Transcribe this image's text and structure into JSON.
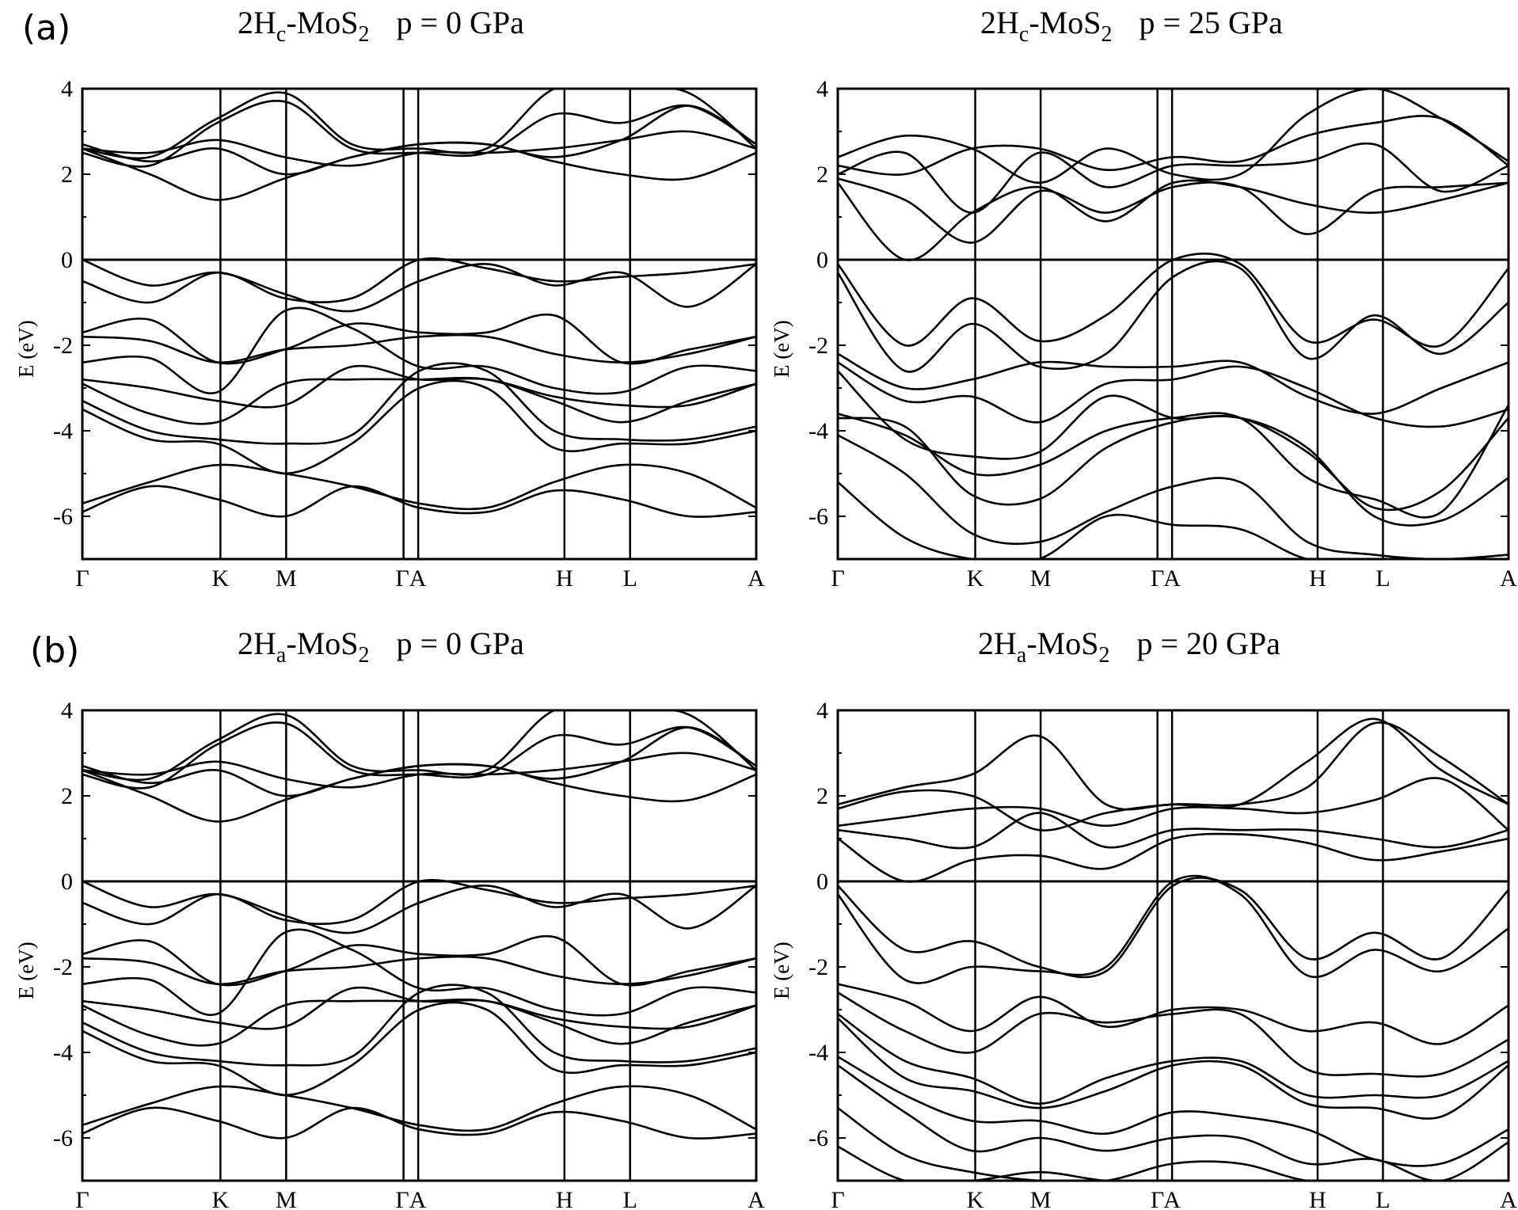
{
  "figure": {
    "panel_tags": [
      "(a)",
      "(b)"
    ]
  },
  "chart_data": [
    {
      "type": "line",
      "panel": "(a)",
      "title": {
        "main": "2H",
        "sub": "c",
        "rest": "-MoS",
        "sub2": "2",
        "pressure": "p = 0 GPa"
      },
      "ylabel": "E (eV)",
      "ylim": [
        -7,
        4
      ],
      "yticks": [
        4,
        2,
        0,
        -2,
        -4,
        -6
      ],
      "ytick_labels": [
        "4",
        "2",
        "0",
        "-2",
        "-4",
        "-6"
      ],
      "kpath": [
        "Γ",
        "K",
        "M",
        "Γ",
        "A",
        "H",
        "L",
        "A"
      ],
      "kpos": [
        0,
        0.2049,
        0.3024,
        0.4766,
        0.4984,
        0.7154,
        0.8128,
        1.0
      ],
      "kpath_labels": [
        "Γ",
        "K",
        "M",
        "ΓA",
        "H",
        "L",
        "A"
      ],
      "kpath_label_pos": [
        0,
        0.2049,
        0.3024,
        0.4875,
        0.7154,
        0.8128,
        1.0
      ],
      "bands": [
        [
          2.6,
          2.0,
          1.4,
          1.9,
          2.4,
          2.7,
          2.7,
          2.3,
          2.0,
          1.9,
          2.5
        ],
        [
          2.6,
          2.5,
          2.8,
          2.4,
          2.2,
          2.5,
          2.5,
          2.6,
          2.8,
          3.0,
          2.6
        ],
        [
          2.7,
          2.3,
          2.6,
          2.0,
          2.4,
          2.7,
          2.7,
          2.4,
          2.8,
          3.6,
          2.7
        ],
        [
          2.5,
          2.2,
          3.2,
          3.7,
          2.6,
          2.5,
          2.5,
          3.4,
          3.2,
          3.6,
          2.7
        ],
        [
          2.6,
          2.4,
          3.3,
          3.9,
          2.7,
          2.6,
          2.6,
          4.0,
          4.0,
          3.9,
          2.6
        ],
        [
          0.0,
          -0.6,
          -0.3,
          -0.8,
          -1.2,
          -0.5,
          -0.1,
          -0.6,
          -0.3,
          -1.1,
          -0.1
        ],
        [
          -0.5,
          -1.0,
          -0.3,
          -0.9,
          -0.9,
          0.0,
          -0.2,
          -0.5,
          -0.4,
          -0.3,
          -0.1
        ],
        [
          -1.7,
          -1.4,
          -2.4,
          -2.1,
          -1.5,
          -1.7,
          -1.7,
          -1.3,
          -2.4,
          -2.1,
          -1.8
        ],
        [
          -1.8,
          -1.9,
          -2.4,
          -2.1,
          -2.0,
          -1.8,
          -1.8,
          -2.2,
          -2.4,
          -2.2,
          -1.8
        ],
        [
          -2.4,
          -2.3,
          -3.1,
          -1.2,
          -1.6,
          -2.5,
          -2.5,
          -3.0,
          -3.1,
          -2.5,
          -2.6
        ],
        [
          -2.8,
          -3.0,
          -3.3,
          -3.4,
          -2.5,
          -2.8,
          -2.8,
          -3.2,
          -3.4,
          -3.4,
          -2.9
        ],
        [
          -2.9,
          -3.6,
          -3.8,
          -2.9,
          -2.8,
          -2.8,
          -2.8,
          -3.3,
          -3.8,
          -3.3,
          -2.9
        ],
        [
          -3.3,
          -4.0,
          -4.2,
          -4.3,
          -4.1,
          -2.6,
          -2.6,
          -4.0,
          -4.2,
          -4.2,
          -3.9
        ],
        [
          -3.5,
          -4.2,
          -4.3,
          -5.0,
          -4.3,
          -3.0,
          -3.0,
          -4.4,
          -4.3,
          -4.3,
          -4.0
        ],
        [
          -5.7,
          -5.2,
          -4.8,
          -5.0,
          -5.3,
          -5.7,
          -5.8,
          -5.2,
          -4.8,
          -5.0,
          -5.8
        ],
        [
          -5.9,
          -5.3,
          -5.6,
          -6.0,
          -5.3,
          -5.8,
          -5.9,
          -5.4,
          -5.6,
          -6.0,
          -5.9
        ]
      ]
    },
    {
      "type": "line",
      "panel": "(a)",
      "title": {
        "main": "2H",
        "sub": "c",
        "rest": "-MoS",
        "sub2": "2",
        "pressure": "p = 25 GPa"
      },
      "ylabel": "E (eV)",
      "ylim": [
        -7,
        4
      ],
      "yticks": [
        4,
        2,
        0,
        -2,
        -4,
        -6
      ],
      "ytick_labels": [
        "4",
        "2",
        "0",
        "-2",
        "-4",
        "-6"
      ],
      "kpath": [
        "Γ",
        "K",
        "M",
        "Γ",
        "A",
        "H",
        "L",
        "A"
      ],
      "kpos": [
        0,
        0.2049,
        0.3024,
        0.4766,
        0.4984,
        0.7154,
        0.8128,
        1.0
      ],
      "kpath_labels": [
        "Γ",
        "K",
        "M",
        "Γ",
        "A",
        "H",
        "L",
        "A"
      ],
      "kpath_label_pos": [
        0,
        0.2049,
        0.3024,
        0.4766,
        0.4984,
        0.7154,
        0.8128,
        1.0
      ],
      "bands": [
        [
          1.8,
          0.0,
          1.1,
          1.7,
          0.9,
          1.8,
          1.7,
          1.3,
          1.1,
          1.4,
          1.8
        ],
        [
          1.9,
          1.4,
          0.4,
          1.6,
          1.1,
          1.7,
          1.7,
          0.6,
          1.6,
          1.7,
          1.8
        ],
        [
          2.0,
          2.5,
          1.1,
          2.5,
          1.7,
          2.2,
          2.2,
          2.3,
          2.7,
          1.6,
          2.2
        ],
        [
          2.2,
          2.0,
          2.6,
          2.6,
          2.1,
          2.4,
          2.3,
          2.9,
          3.2,
          3.3,
          2.2
        ],
        [
          2.4,
          2.9,
          2.6,
          1.8,
          2.6,
          2.0,
          2.0,
          3.4,
          4.0,
          3.3,
          2.3
        ],
        [
          -0.1,
          -2.0,
          -0.9,
          -1.9,
          -1.3,
          0.0,
          -0.1,
          -1.9,
          -1.4,
          -2.0,
          -0.2
        ],
        [
          -0.3,
          -2.6,
          -1.5,
          -2.5,
          -2.2,
          -0.4,
          -0.2,
          -2.3,
          -1.3,
          -2.2,
          -1.0
        ],
        [
          -2.2,
          -3.0,
          -2.8,
          -2.4,
          -2.5,
          -2.5,
          -2.4,
          -3.2,
          -3.6,
          -3.0,
          -2.4
        ],
        [
          -2.4,
          -3.3,
          -3.2,
          -3.8,
          -2.9,
          -2.8,
          -2.5,
          -3.0,
          -3.7,
          -3.9,
          -3.5
        ],
        [
          -2.6,
          -4.2,
          -4.6,
          -4.5,
          -3.2,
          -3.7,
          -3.7,
          -4.5,
          -5.8,
          -5.4,
          -3.7
        ],
        [
          -3.6,
          -4.1,
          -5.0,
          -4.8,
          -4.0,
          -3.7,
          -3.7,
          -5.1,
          -5.6,
          -5.9,
          -3.4
        ],
        [
          -3.7,
          -3.9,
          -5.5,
          -5.6,
          -4.4,
          -3.8,
          -3.7,
          -4.4,
          -6.0,
          -6.1,
          -5.1
        ],
        [
          -4.1,
          -5.0,
          -6.4,
          -6.6,
          -5.9,
          -5.3,
          -5.2,
          -6.6,
          -6.9,
          -7.0,
          -6.9
        ],
        [
          -5.2,
          -6.5,
          -7.0,
          -7.0,
          -6.0,
          -6.2,
          -6.3,
          -7.0,
          -7.0,
          -7.0,
          -7.0
        ]
      ]
    },
    {
      "type": "line",
      "panel": "(b)",
      "title": {
        "main": "2H",
        "sub": "a",
        "rest": "-MoS",
        "sub2": "2",
        "pressure": "p = 0 GPa"
      },
      "ylabel": "E (eV)",
      "ylim": [
        -7,
        4
      ],
      "yticks": [
        4,
        2,
        0,
        -2,
        -4,
        -6
      ],
      "ytick_labels": [
        "4",
        "2",
        "0",
        "-2",
        "-4",
        "-6"
      ],
      "kpath": [
        "Γ",
        "K",
        "M",
        "Γ",
        "A",
        "H",
        "L",
        "A"
      ],
      "kpos": [
        0,
        0.2049,
        0.3024,
        0.4766,
        0.4984,
        0.7154,
        0.8128,
        1.0
      ],
      "kpath_labels": [
        "Γ",
        "K",
        "M",
        "ΓA",
        "H",
        "L",
        "A"
      ],
      "kpath_label_pos": [
        0,
        0.2049,
        0.3024,
        0.4875,
        0.7154,
        0.8128,
        1.0
      ],
      "bands": [
        [
          2.6,
          2.0,
          1.4,
          1.9,
          2.4,
          2.7,
          2.7,
          2.3,
          2.0,
          1.9,
          2.5
        ],
        [
          2.6,
          2.5,
          2.8,
          2.4,
          2.2,
          2.5,
          2.5,
          2.6,
          2.8,
          3.0,
          2.6
        ],
        [
          2.7,
          2.3,
          2.6,
          2.0,
          2.4,
          2.7,
          2.7,
          2.4,
          2.8,
          3.6,
          2.7
        ],
        [
          2.5,
          2.2,
          3.2,
          3.7,
          2.6,
          2.5,
          2.5,
          3.4,
          3.2,
          3.6,
          2.7
        ],
        [
          2.6,
          2.4,
          3.3,
          3.9,
          2.7,
          2.6,
          2.6,
          4.0,
          4.0,
          3.9,
          2.6
        ],
        [
          0.0,
          -0.6,
          -0.3,
          -0.8,
          -1.2,
          -0.5,
          -0.1,
          -0.6,
          -0.3,
          -1.1,
          -0.1
        ],
        [
          -0.5,
          -1.0,
          -0.3,
          -0.9,
          -0.9,
          0.0,
          -0.2,
          -0.5,
          -0.4,
          -0.3,
          -0.1
        ],
        [
          -1.7,
          -1.4,
          -2.4,
          -2.1,
          -1.5,
          -1.7,
          -1.7,
          -1.3,
          -2.4,
          -2.1,
          -1.8
        ],
        [
          -1.8,
          -1.9,
          -2.4,
          -2.1,
          -2.0,
          -1.8,
          -1.8,
          -2.2,
          -2.4,
          -2.2,
          -1.8
        ],
        [
          -2.4,
          -2.3,
          -3.1,
          -1.2,
          -1.6,
          -2.5,
          -2.5,
          -3.0,
          -3.1,
          -2.5,
          -2.6
        ],
        [
          -2.8,
          -3.0,
          -3.3,
          -3.4,
          -2.5,
          -2.8,
          -2.8,
          -3.2,
          -3.4,
          -3.4,
          -2.9
        ],
        [
          -2.9,
          -3.6,
          -3.8,
          -2.9,
          -2.8,
          -2.8,
          -2.8,
          -3.3,
          -3.8,
          -3.3,
          -2.9
        ],
        [
          -3.3,
          -4.0,
          -4.2,
          -4.3,
          -4.1,
          -2.6,
          -2.6,
          -4.0,
          -4.2,
          -4.2,
          -3.9
        ],
        [
          -3.5,
          -4.2,
          -4.3,
          -5.0,
          -4.3,
          -3.0,
          -3.0,
          -4.4,
          -4.3,
          -4.3,
          -4.0
        ],
        [
          -5.7,
          -5.2,
          -4.8,
          -5.0,
          -5.3,
          -5.7,
          -5.8,
          -5.2,
          -4.8,
          -5.0,
          -5.8
        ],
        [
          -5.9,
          -5.3,
          -5.6,
          -6.0,
          -5.3,
          -5.8,
          -5.9,
          -5.4,
          -5.6,
          -6.0,
          -5.9
        ]
      ]
    },
    {
      "type": "line",
      "panel": "(b)",
      "title": {
        "main": "2H",
        "sub": "a",
        "rest": "-MoS",
        "sub2": "2",
        "pressure": "p = 20 GPa"
      },
      "ylabel": "E (eV)",
      "ylim": [
        -7,
        4
      ],
      "yticks": [
        4,
        2,
        0,
        -2,
        -4,
        -6
      ],
      "ytick_labels": [
        "4",
        "2",
        "0",
        "-2",
        "-4",
        "-6"
      ],
      "kpath": [
        "Γ",
        "K",
        "M",
        "Γ",
        "A",
        "H",
        "L",
        "A"
      ],
      "kpos": [
        0,
        0.2049,
        0.3024,
        0.4766,
        0.4984,
        0.7154,
        0.8128,
        1.0
      ],
      "kpath_labels": [
        "Γ",
        "K",
        "M",
        "Γ",
        "A",
        "H",
        "L",
        "A"
      ],
      "kpath_label_pos": [
        0,
        0.2049,
        0.3024,
        0.4766,
        0.4984,
        0.7154,
        0.8128,
        1.0
      ],
      "bands": [
        [
          1.0,
          0.0,
          0.5,
          0.6,
          0.3,
          1.0,
          1.1,
          0.9,
          0.5,
          0.7,
          1.0
        ],
        [
          1.2,
          1.0,
          0.8,
          1.6,
          0.8,
          1.2,
          1.2,
          1.2,
          1.0,
          0.8,
          1.2
        ],
        [
          1.3,
          1.5,
          1.7,
          1.7,
          1.3,
          1.7,
          1.7,
          1.6,
          1.9,
          2.4,
          1.2
        ],
        [
          1.7,
          2.1,
          2.0,
          1.2,
          1.6,
          1.8,
          1.8,
          2.2,
          3.7,
          2.9,
          1.8
        ],
        [
          1.8,
          2.2,
          2.5,
          3.4,
          1.8,
          1.8,
          1.8,
          2.8,
          3.8,
          2.6,
          1.8
        ],
        [
          -0.1,
          -1.6,
          -1.4,
          -2.0,
          -2.1,
          -0.1,
          -0.2,
          -1.8,
          -1.2,
          -1.8,
          -0.2
        ],
        [
          -0.3,
          -2.3,
          -2.0,
          -2.1,
          -2.0,
          0.0,
          -0.3,
          -2.2,
          -1.6,
          -2.1,
          -1.1
        ],
        [
          -2.4,
          -2.8,
          -3.5,
          -2.7,
          -3.4,
          -3.0,
          -3.0,
          -3.5,
          -3.3,
          -3.8,
          -2.9
        ],
        [
          -2.6,
          -3.5,
          -4.0,
          -3.1,
          -3.3,
          -3.1,
          -3.1,
          -4.4,
          -4.5,
          -4.5,
          -3.7
        ],
        [
          -3.1,
          -4.2,
          -4.6,
          -5.2,
          -4.6,
          -4.2,
          -4.2,
          -5.0,
          -5.0,
          -5.0,
          -4.2
        ],
        [
          -3.2,
          -4.6,
          -4.9,
          -5.3,
          -4.9,
          -4.3,
          -4.3,
          -5.2,
          -5.3,
          -5.5,
          -4.3
        ],
        [
          -4.1,
          -5.0,
          -5.6,
          -5.6,
          -5.9,
          -5.4,
          -5.5,
          -5.8,
          -6.5,
          -6.6,
          -5.8
        ],
        [
          -4.3,
          -5.4,
          -6.3,
          -6.0,
          -6.3,
          -6.0,
          -6.0,
          -6.6,
          -6.5,
          -7.0,
          -6.1
        ],
        [
          -5.3,
          -6.4,
          -6.8,
          -7.0,
          -7.0,
          -6.6,
          -6.6,
          -7.0,
          -7.0,
          -7.0,
          -7.0
        ],
        [
          -6.2,
          -7.0,
          -7.0,
          -6.8,
          -7.0,
          -7.0,
          -7.0,
          -7.0,
          -7.0,
          -7.0,
          -7.0
        ]
      ]
    }
  ]
}
